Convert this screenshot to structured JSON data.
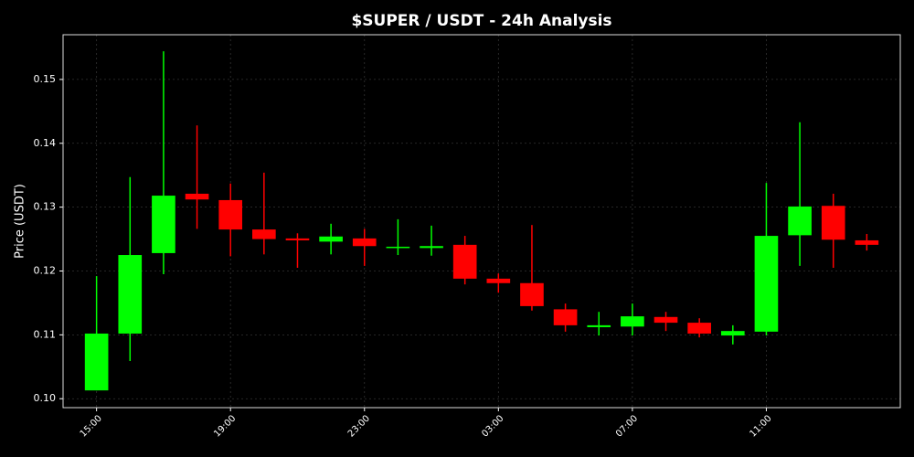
{
  "chart_data": {
    "type": "candlestick",
    "title": "$SUPER / USDT - 24h Analysis",
    "y_label": "Price (USDT)",
    "categories": [
      "15:00",
      null,
      null,
      null,
      "19:00",
      null,
      null,
      null,
      "23:00",
      null,
      null,
      null,
      "03:00",
      null,
      null,
      null,
      "07:00",
      null,
      null,
      null,
      "11:00",
      null,
      null,
      null
    ],
    "up_color": "#00ff00",
    "down_color": "#ff0000",
    "grid": true,
    "series": [
      {
        "open": [
          0.1013,
          0.1102,
          0.1228,
          0.1321,
          0.1311,
          0.1265,
          0.1251,
          0.1246,
          0.1251,
          0.1236,
          0.1236,
          0.1241,
          0.1188,
          0.1181,
          0.114,
          0.1112,
          0.1113,
          0.1128,
          0.1119,
          0.1099,
          0.1105,
          0.1256,
          0.1302,
          0.1248
        ],
        "high": [
          0.1192,
          0.1347,
          0.1544,
          0.1428,
          0.1337,
          0.1354,
          0.1259,
          0.1274,
          0.1266,
          0.1281,
          0.1271,
          0.1255,
          0.1196,
          0.1272,
          0.1149,
          0.1136,
          0.1149,
          0.1136,
          0.1126,
          0.1115,
          0.1338,
          0.1433,
          0.1321,
          0.1258
        ],
        "low": [
          0.1013,
          0.1059,
          0.1195,
          0.1266,
          0.1223,
          0.1226,
          0.1205,
          0.1226,
          0.1208,
          0.1225,
          0.1224,
          0.1179,
          0.1166,
          0.1138,
          0.1105,
          0.1099,
          0.1099,
          0.1106,
          0.1096,
          0.1085,
          0.1099,
          0.1208,
          0.1205,
          0.1232
        ],
        "close": [
          0.1102,
          0.1225,
          0.1318,
          0.1312,
          0.1265,
          0.125,
          0.1248,
          0.1254,
          0.1239,
          0.1238,
          0.1239,
          0.1188,
          0.1181,
          0.1145,
          0.1115,
          0.1115,
          0.1129,
          0.1119,
          0.1102,
          0.1106,
          0.1255,
          0.1301,
          0.1249,
          0.1241
        ]
      }
    ],
    "ylim": [
      0.0986,
      0.157
    ],
    "yticks": [
      {
        "value": 0.1,
        "label": "0.10"
      },
      0.11,
      0.12,
      0.13,
      0.14,
      0.15
    ]
  }
}
